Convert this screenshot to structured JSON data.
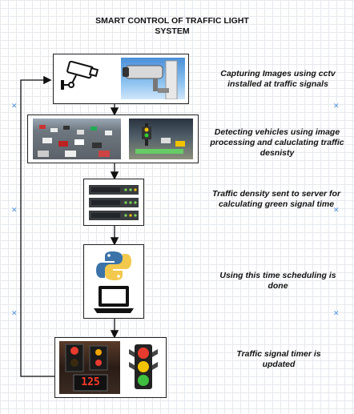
{
  "title": "SMART CONTROL OF TRAFFIC LIGHT SYSTEM",
  "steps": [
    {
      "text": "Capturing  Images using cctv installed at traffic signals",
      "icon": "cctv-camera-icon"
    },
    {
      "text": "Detecting vehicles using image processing and caluclating traffic desnisty",
      "icon": "traffic-photos"
    },
    {
      "text": "Traffic density sent to server for calculating green signal time",
      "icon": "server-rack-icon"
    },
    {
      "text": "Using this time scheduling is done",
      "icon": "python-laptop-icon"
    },
    {
      "text": "Traffic signal timer is updated",
      "icon": "traffic-light-icon"
    }
  ],
  "timer_display": "125"
}
